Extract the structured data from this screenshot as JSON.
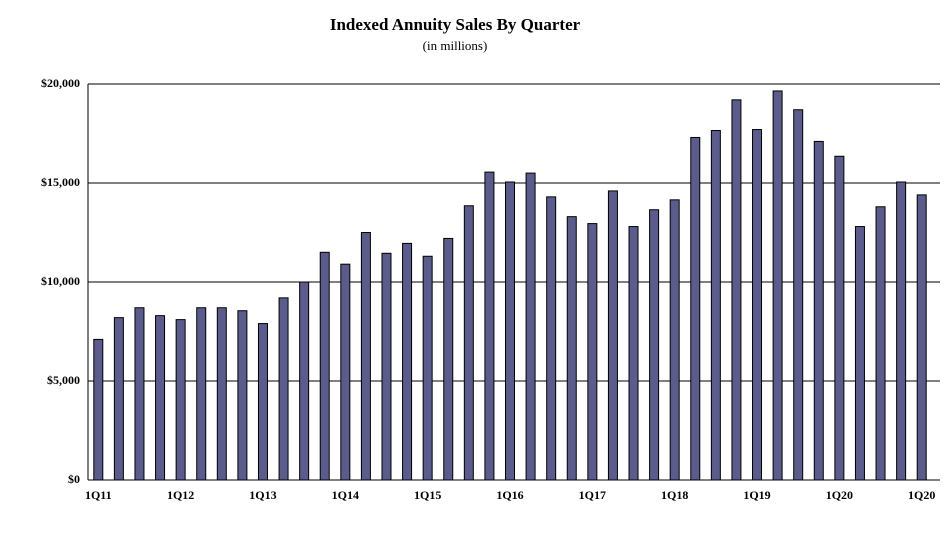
{
  "chart_data": {
    "type": "bar",
    "title": "Indexed Annuity  Sales By Quarter",
    "subtitle": "(in millions)",
    "categories": [
      "1Q11",
      null,
      null,
      null,
      "1Q12",
      null,
      null,
      null,
      "1Q13",
      null,
      null,
      null,
      "1Q14",
      null,
      null,
      null,
      "1Q15",
      null,
      null,
      null,
      "1Q16",
      null,
      null,
      null,
      "1Q17",
      null,
      null,
      null,
      "1Q18",
      null,
      null,
      null,
      "1Q19",
      null,
      null,
      null,
      "1Q20",
      null,
      null,
      null,
      "1Q20"
    ],
    "values": [
      7100,
      8200,
      8700,
      8300,
      8100,
      8700,
      8700,
      8550,
      7900,
      9200,
      10000,
      11500,
      10900,
      12500,
      11450,
      11950,
      11300,
      12200,
      13850,
      15550,
      15050,
      15500,
      14300,
      13300,
      12950,
      14600,
      12800,
      13650,
      14150,
      17300,
      17650,
      19200,
      17700,
      19650,
      18700,
      17100,
      16350,
      12800,
      13800,
      15050,
      14400
    ],
    "color": "#5c5c8c",
    "ylim": [
      0,
      20000
    ],
    "yticks": [
      {
        "value": 0,
        "label": "$0"
      },
      {
        "value": 5000,
        "label": "$5,000"
      },
      {
        "value": 10000,
        "label": "$10,000"
      },
      {
        "value": 15000,
        "label": "$15,000"
      },
      {
        "value": 20000,
        "label": "$20,000"
      }
    ],
    "grid": true
  }
}
